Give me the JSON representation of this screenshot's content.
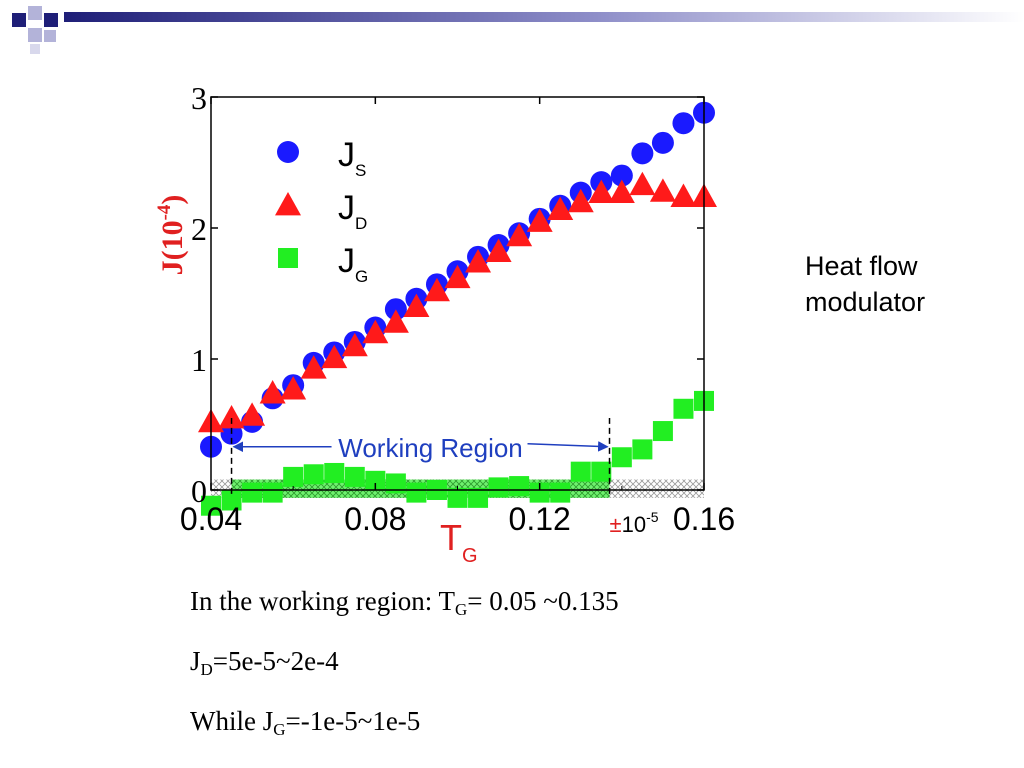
{
  "side_note": [
    "Heat flow",
    "modulator"
  ],
  "notes": {
    "line1": {
      "prefix": "In the working region: T",
      "sub": "G",
      "suffix": "= 0.05 ~0.135"
    },
    "line2": {
      "prefix": "J",
      "sub": "D",
      "suffix": "=5e-5~2e-4"
    },
    "line3": {
      "prefix": "While J",
      "sub": "G",
      "suffix": "=-1e-5~1e-5"
    }
  },
  "colors": {
    "js": "#1a1aff",
    "jd": "#ff1a1a",
    "jg": "#22ee22",
    "deco_dark": "#1f1f78",
    "deco_light": "#b3b3d9",
    "working_region": "#1f3fbf",
    "ylabel": "#e02020",
    "xlabel": "#e02020"
  },
  "chart_data": {
    "type": "scatter",
    "xlim": [
      0.04,
      0.16
    ],
    "ylim": [
      0,
      3
    ],
    "xticks": [
      "0.04",
      "0.08",
      "0.12",
      "0.16"
    ],
    "yticks": [
      "0",
      "1",
      "2",
      "3"
    ],
    "xlabel": {
      "main": "T",
      "sub": "G"
    },
    "ylabel": {
      "main": "J(10",
      "sup": "-4",
      "tail": ")"
    },
    "legend": {
      "placement": "top-left",
      "entries": [
        {
          "main": "J",
          "sub": "S",
          "marker": "circle"
        },
        {
          "main": "J",
          "sub": "D",
          "marker": "triangle"
        },
        {
          "main": "J",
          "sub": "G",
          "marker": "square"
        }
      ]
    },
    "series": [
      {
        "key": "js",
        "marker": "circle",
        "x": [
          0.04,
          0.045,
          0.05,
          0.055,
          0.06,
          0.065,
          0.07,
          0.075,
          0.08,
          0.085,
          0.09,
          0.095,
          0.1,
          0.105,
          0.11,
          0.115,
          0.12,
          0.125,
          0.13,
          0.135,
          0.14,
          0.145,
          0.15,
          0.155,
          0.16
        ],
        "y": [
          0.33,
          0.43,
          0.52,
          0.7,
          0.8,
          0.97,
          1.05,
          1.13,
          1.24,
          1.38,
          1.46,
          1.57,
          1.67,
          1.78,
          1.87,
          1.96,
          2.07,
          2.17,
          2.27,
          2.35,
          2.4,
          2.57,
          2.65,
          2.8,
          2.88
        ]
      },
      {
        "key": "jd",
        "marker": "triangle",
        "x": [
          0.04,
          0.045,
          0.05,
          0.055,
          0.06,
          0.065,
          0.07,
          0.075,
          0.08,
          0.085,
          0.09,
          0.095,
          0.1,
          0.105,
          0.11,
          0.115,
          0.12,
          0.125,
          0.13,
          0.135,
          0.14,
          0.145,
          0.15,
          0.155,
          0.16
        ],
        "y": [
          0.52,
          0.55,
          0.57,
          0.74,
          0.77,
          0.93,
          1.01,
          1.1,
          1.2,
          1.28,
          1.4,
          1.52,
          1.62,
          1.74,
          1.82,
          1.94,
          2.05,
          2.14,
          2.2,
          2.27,
          2.27,
          2.33,
          2.28,
          2.24,
          2.24
        ]
      },
      {
        "key": "jg",
        "marker": "square",
        "x": [
          0.04,
          0.045,
          0.05,
          0.055,
          0.06,
          0.065,
          0.07,
          0.075,
          0.08,
          0.085,
          0.09,
          0.095,
          0.1,
          0.105,
          0.11,
          0.115,
          0.12,
          0.125,
          0.13,
          0.135,
          0.14,
          0.145,
          0.15,
          0.155,
          0.16
        ],
        "y": [
          -0.12,
          -0.08,
          -0.02,
          -0.02,
          0.1,
          0.12,
          0.13,
          0.1,
          0.07,
          0.05,
          -0.02,
          0.0,
          -0.06,
          -0.06,
          0.02,
          0.03,
          -0.02,
          -0.02,
          0.14,
          0.14,
          0.25,
          0.31,
          0.45,
          0.62,
          0.68
        ]
      }
    ],
    "annotations": {
      "working_region": {
        "label": "Working Region",
        "x_start": 0.045,
        "x_end": 0.137,
        "y": 0.33
      },
      "band": {
        "label": "10",
        "sup": "-5",
        "prefix": "±",
        "y_low": -0.06,
        "y_high": 0.08
      }
    }
  }
}
